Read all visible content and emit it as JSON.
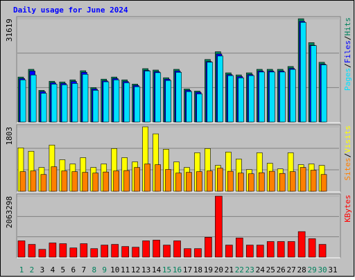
{
  "title": "Daily usage for June 2024",
  "chart_data": [
    {
      "type": "bar",
      "ylim": [
        0,
        31619
      ],
      "yticks": [
        31619
      ],
      "legend_separator": "/",
      "series": [
        {
          "name": "Hits",
          "color": "#00805c",
          "values": [
            13760,
            16130,
            9680,
            12470,
            12260,
            12900,
            15700,
            10540,
            13120,
            13760,
            12900,
            11610,
            16340,
            15910,
            13550,
            16130,
            10110,
            9460,
            19140,
            21510,
            15050,
            14410,
            15050,
            16130,
            16130,
            16130,
            16990,
            31619,
            24300,
            18280,
            null
          ]
        },
        {
          "name": "Files",
          "color": "#0000ff",
          "values": [
            13300,
            15600,
            9300,
            12000,
            11800,
            12400,
            15200,
            10100,
            12600,
            13300,
            12400,
            11200,
            15800,
            15400,
            13100,
            15600,
            9700,
            9100,
            18500,
            20800,
            14500,
            13900,
            14500,
            15600,
            15600,
            15600,
            16400,
            30800,
            23500,
            17700,
            null
          ]
        },
        {
          "name": "Pages",
          "color": "#00e0ff",
          "values": [
            12900,
            14400,
            8800,
            11600,
            11400,
            11800,
            14600,
            9700,
            12300,
            12900,
            12000,
            10800,
            15600,
            15100,
            12700,
            15200,
            9300,
            8600,
            18300,
            20200,
            14200,
            13500,
            14200,
            15300,
            15300,
            15300,
            16100,
            30500,
            23400,
            17500,
            null
          ]
        }
      ]
    },
    {
      "type": "bar",
      "ylim": [
        0,
        1803
      ],
      "yticks": [
        1803
      ],
      "legend_separator": "/",
      "series": [
        {
          "name": "Visits",
          "color": "#ffff00",
          "values": [
            1215,
            1120,
            667,
            1294,
            882,
            765,
            941,
            667,
            765,
            1196,
            941,
            823,
            1803,
            1607,
            1176,
            823,
            667,
            1078,
            1196,
            725,
            1098,
            902,
            608,
            1078,
            784,
            627,
            1078,
            745,
            765,
            725,
            null
          ]
        },
        {
          "name": "Sites",
          "color": "#ff8000",
          "values": [
            550,
            570,
            470,
            686,
            570,
            550,
            530,
            510,
            540,
            570,
            580,
            667,
            765,
            745,
            610,
            510,
            530,
            550,
            570,
            647,
            560,
            510,
            490,
            520,
            560,
            500,
            550,
            667,
            590,
            470,
            null
          ]
        }
      ]
    },
    {
      "type": "bar",
      "ylim": [
        0,
        2063298
      ],
      "yticks": [
        2063298
      ],
      "categories": [
        "1",
        "2",
        "3",
        "4",
        "5",
        "6",
        "7",
        "8",
        "9",
        "10",
        "11",
        "12",
        "13",
        "14",
        "15",
        "16",
        "17",
        "18",
        "19",
        "20",
        "21",
        "22",
        "23",
        "24",
        "25",
        "26",
        "27",
        "28",
        "29",
        "30",
        "31"
      ],
      "category_colors": [
        "#00805c",
        "#00805c",
        "#000000",
        "#000000",
        "#000000",
        "#000000",
        "#000000",
        "#00805c",
        "#00805c",
        "#000000",
        "#000000",
        "#000000",
        "#000000",
        "#000000",
        "#00805c",
        "#00805c",
        "#000000",
        "#000000",
        "#000000",
        "#000000",
        "#000000",
        "#00805c",
        "#00805c",
        "#000000",
        "#000000",
        "#000000",
        "#000000",
        "#000000",
        "#00805c",
        "#00805c",
        "#000000"
      ],
      "series": [
        {
          "name": "KBytes",
          "color": "#ff0000",
          "values": [
            552000,
            432000,
            264000,
            480000,
            456000,
            312000,
            456000,
            288000,
            408000,
            432000,
            360000,
            336000,
            552000,
            576000,
            408000,
            552000,
            288000,
            288000,
            672000,
            2063298,
            408000,
            648000,
            408000,
            408000,
            528000,
            528000,
            528000,
            864000,
            624000,
            432000,
            null
          ]
        }
      ]
    }
  ]
}
